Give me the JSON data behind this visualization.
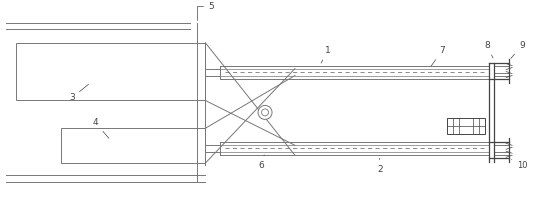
{
  "line_color": "#777777",
  "dark_color": "#444444",
  "fig_width": 5.55,
  "fig_height": 2.16,
  "dpi": 100,
  "lw": 0.7,
  "lw2": 0.9
}
